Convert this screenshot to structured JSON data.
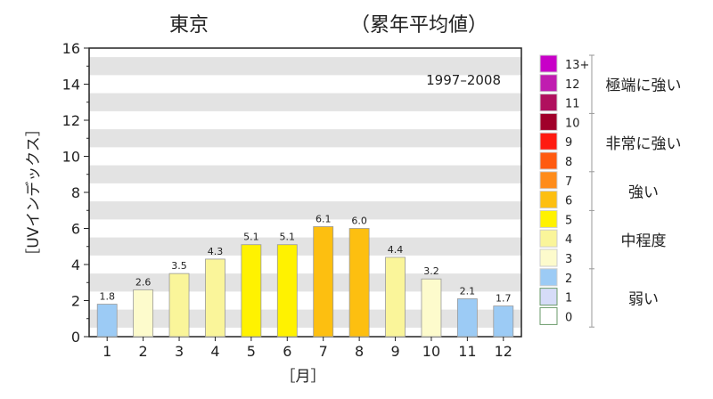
{
  "chart_data": {
    "type": "bar",
    "title": "東京",
    "subtitle": "（累年平均値）",
    "annotation": "1997–2008",
    "xlabel": "［月］",
    "ylabel": "［UVインデックス］",
    "ylim": [
      0,
      16
    ],
    "yticks": [
      "0",
      "2",
      "4",
      "6",
      "8",
      "10",
      "12",
      "14",
      "16"
    ],
    "categories": [
      "1",
      "2",
      "3",
      "4",
      "5",
      "6",
      "7",
      "8",
      "9",
      "10",
      "11",
      "12"
    ],
    "values": [
      1.8,
      2.6,
      3.5,
      4.3,
      5.1,
      5.1,
      6.1,
      6.0,
      4.4,
      3.2,
      2.1,
      1.7
    ],
    "value_labels": [
      "1.8",
      "2.6",
      "3.5",
      "4.3",
      "5.1",
      "5.1",
      "6.1",
      "6.0",
      "4.4",
      "3.2",
      "2.1",
      "1.7"
    ],
    "grid": "alternating horizontal bands",
    "legend": {
      "placement": "right",
      "levels": [
        {
          "label": "13+",
          "color": "#c800c8"
        },
        {
          "label": "12",
          "color": "#c01cb0"
        },
        {
          "label": "11",
          "color": "#b0105e"
        },
        {
          "label": "10",
          "color": "#a0002a"
        },
        {
          "label": "9",
          "color": "#ff1a10"
        },
        {
          "label": "8",
          "color": "#ff5a10"
        },
        {
          "label": "7",
          "color": "#ff8c1a"
        },
        {
          "label": "6",
          "color": "#fdbf10"
        },
        {
          "label": "5",
          "color": "#fff200"
        },
        {
          "label": "4",
          "color": "#faf59a"
        },
        {
          "label": "3",
          "color": "#fdfbcc"
        },
        {
          "label": "2",
          "color": "#9ccbf5"
        },
        {
          "label": "1",
          "color": "#d6dcf8"
        },
        {
          "label": "0",
          "color": "#ffffff"
        }
      ],
      "categories": [
        {
          "label": "極端に強い",
          "from": 11,
          "to": 13
        },
        {
          "label": "非常に強い",
          "from": 8,
          "to": 10
        },
        {
          "label": "強い",
          "from": 6,
          "to": 7
        },
        {
          "label": "中程度",
          "from": 3,
          "to": 5
        },
        {
          "label": "弱い",
          "from": 0,
          "to": 2
        }
      ]
    }
  }
}
